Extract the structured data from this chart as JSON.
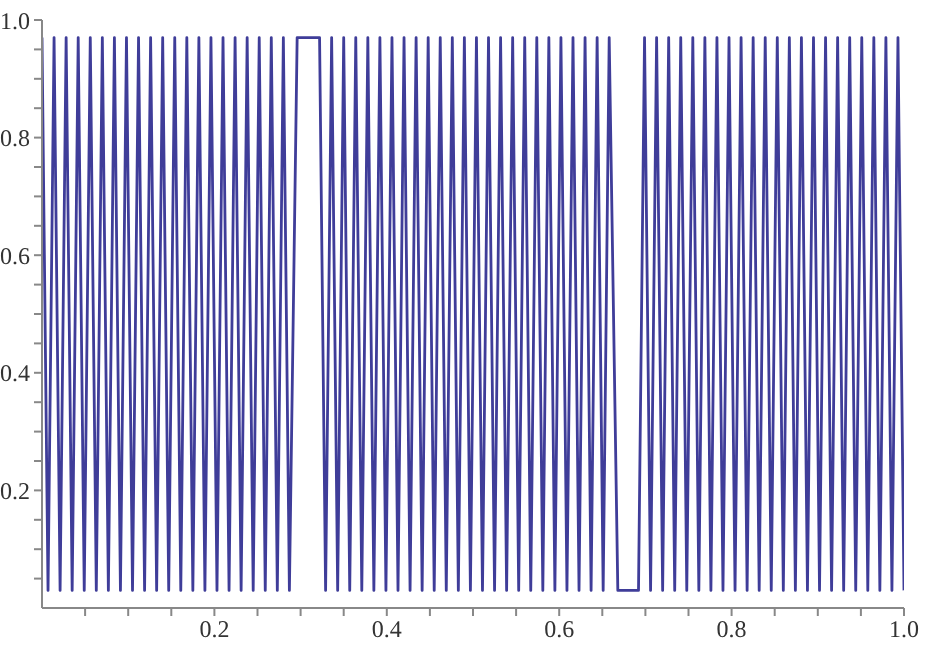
{
  "chart_data": {
    "type": "line",
    "color": "#3f3d99",
    "marker": "none",
    "line_style": "solid",
    "grid": false,
    "legend": false,
    "xlim": [
      0,
      1
    ],
    "xticks": [
      {
        "value": 0.05,
        "label": null
      },
      {
        "value": 0.1,
        "label": null
      },
      {
        "value": 0.15,
        "label": null
      },
      0.2,
      {
        "value": 0.25,
        "label": null
      },
      {
        "value": 0.3,
        "label": null
      },
      {
        "value": 0.35,
        "label": null
      },
      0.4,
      {
        "value": 0.45,
        "label": null
      },
      {
        "value": 0.5,
        "label": null
      },
      {
        "value": 0.55,
        "label": null
      },
      0.6,
      {
        "value": 0.65,
        "label": null
      },
      {
        "value": 0.7,
        "label": null
      },
      {
        "value": 0.75,
        "label": null
      },
      0.8,
      {
        "value": 0.85,
        "label": null
      },
      {
        "value": 0.9,
        "label": null
      },
      {
        "value": 0.95,
        "label": null
      },
      {
        "value": 1,
        "label": "1.0"
      }
    ],
    "ylim": [
      0,
      1
    ],
    "yticks": [
      {
        "value": 0.05,
        "label": null
      },
      {
        "value": 0.1,
        "label": null
      },
      {
        "value": 0.15,
        "label": null
      },
      0.2,
      {
        "value": 0.25,
        "label": null
      },
      {
        "value": 0.3,
        "label": null
      },
      {
        "value": 0.35,
        "label": null
      },
      0.4,
      {
        "value": 0.45,
        "label": null
      },
      {
        "value": 0.5,
        "label": null
      },
      {
        "value": 0.55,
        "label": null
      },
      0.6,
      {
        "value": 0.65,
        "label": null
      },
      {
        "value": 0.7,
        "label": null
      },
      {
        "value": 0.75,
        "label": null
      },
      0.8,
      {
        "value": 0.85,
        "label": null
      },
      {
        "value": 0.9,
        "label": null
      },
      {
        "value": 0.95,
        "label": null
      },
      {
        "value": 1,
        "label": "1.0"
      }
    ],
    "x": [
      0,
      0.007,
      0.014,
      0.021,
      0.028,
      0.035,
      0.042,
      0.049,
      0.056,
      0.063,
      0.07,
      0.077,
      0.084,
      0.091,
      0.098,
      0.105,
      0.112,
      0.119,
      0.126,
      0.133,
      0.14,
      0.147,
      0.154,
      0.161,
      0.168,
      0.175,
      0.182,
      0.189,
      0.196,
      0.203,
      0.21,
      0.217,
      0.224,
      0.231,
      0.238,
      0.245,
      0.252,
      0.259,
      0.266,
      0.273,
      0.28,
      0.287,
      0.296,
      0.322,
      0.329,
      0.336,
      0.343,
      0.35,
      0.357,
      0.364,
      0.371,
      0.378,
      0.385,
      0.392,
      0.399,
      0.406,
      0.413,
      0.42,
      0.427,
      0.434,
      0.441,
      0.448,
      0.455,
      0.462,
      0.469,
      0.476,
      0.483,
      0.49,
      0.497,
      0.504,
      0.511,
      0.518,
      0.525,
      0.532,
      0.539,
      0.546,
      0.553,
      0.56,
      0.567,
      0.574,
      0.581,
      0.588,
      0.595,
      0.602,
      0.609,
      0.616,
      0.623,
      0.63,
      0.637,
      0.644,
      0.651,
      0.658,
      0.668,
      0.692,
      0.699,
      0.706,
      0.713,
      0.72,
      0.727,
      0.734,
      0.741,
      0.748,
      0.755,
      0.762,
      0.769,
      0.776,
      0.783,
      0.79,
      0.797,
      0.804,
      0.811,
      0.818,
      0.825,
      0.832,
      0.839,
      0.846,
      0.853,
      0.86,
      0.867,
      0.874,
      0.881,
      0.888,
      0.895,
      0.902,
      0.909,
      0.916,
      0.923,
      0.93,
      0.937,
      0.944,
      0.951,
      0.958,
      0.965,
      0.972,
      0.979,
      0.986,
      0.993,
      1
    ],
    "values": [
      0.97,
      0.03,
      0.97,
      0.03,
      0.97,
      0.03,
      0.97,
      0.03,
      0.97,
      0.03,
      0.97,
      0.03,
      0.97,
      0.03,
      0.97,
      0.03,
      0.97,
      0.03,
      0.97,
      0.03,
      0.97,
      0.03,
      0.97,
      0.03,
      0.97,
      0.03,
      0.97,
      0.03,
      0.97,
      0.03,
      0.97,
      0.03,
      0.97,
      0.03,
      0.97,
      0.03,
      0.97,
      0.03,
      0.97,
      0.03,
      0.97,
      0.03,
      0.97,
      0.97,
      0.03,
      0.97,
      0.03,
      0.97,
      0.03,
      0.97,
      0.03,
      0.97,
      0.03,
      0.97,
      0.03,
      0.97,
      0.03,
      0.97,
      0.03,
      0.97,
      0.03,
      0.97,
      0.03,
      0.97,
      0.03,
      0.97,
      0.03,
      0.97,
      0.03,
      0.97,
      0.03,
      0.97,
      0.03,
      0.97,
      0.03,
      0.97,
      0.03,
      0.97,
      0.03,
      0.97,
      0.03,
      0.97,
      0.03,
      0.97,
      0.03,
      0.97,
      0.03,
      0.97,
      0.03,
      0.97,
      0.03,
      0.97,
      0.03,
      0.03,
      0.97,
      0.03,
      0.97,
      0.03,
      0.97,
      0.03,
      0.97,
      0.03,
      0.97,
      0.03,
      0.97,
      0.03,
      0.97,
      0.03,
      0.97,
      0.03,
      0.97,
      0.03,
      0.97,
      0.03,
      0.97,
      0.03,
      0.97,
      0.03,
      0.97,
      0.03,
      0.97,
      0.03,
      0.97,
      0.03,
      0.97,
      0.03,
      0.97,
      0.03,
      0.97,
      0.03,
      0.97,
      0.03,
      0.97,
      0.03,
      0.97,
      0.03,
      0.97,
      0.03
    ]
  }
}
